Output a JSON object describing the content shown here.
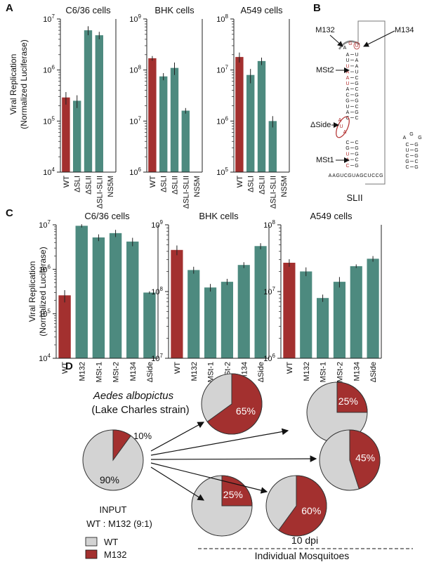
{
  "figure": {
    "colors": {
      "wt": "#a3302f",
      "mut": "#4d8a7f",
      "grey": "#d3d3d3",
      "axis": "#222222",
      "error": "#222222"
    },
    "panel_a": {
      "letter": "A",
      "ylabel_line1": "Viral Replication",
      "ylabel_line2": "(Normalized Luciferase)"
    },
    "panel_b": {
      "letter": "B",
      "structure_label": "SLII",
      "labels": {
        "m132": "M132",
        "m134": "M134",
        "mst2": "MSt2",
        "side": "ΔSide",
        "mst1": "MSt1"
      },
      "seq_left": [
        "A",
        "U",
        "U",
        "A",
        "A",
        "U",
        "A",
        "C",
        "G",
        "U",
        "A",
        "C",
        "G"
      ],
      "seq_right": [
        "U",
        "A",
        "A",
        "U",
        "C",
        "G",
        "C",
        "G",
        "G",
        "C",
        "G",
        "C"
      ],
      "loop": [
        "A",
        "G",
        "U"
      ],
      "bottom_seq": "AAGUCGUAGCUCCG",
      "side_bulge": [
        "A",
        "U",
        "A"
      ],
      "small_stem_left": [
        "C",
        "U",
        "C",
        "G",
        "C"
      ],
      "small_stem_right": [
        "G",
        "G",
        "G",
        "C",
        "G"
      ],
      "small_loop": [
        "A",
        "G",
        "G"
      ]
    },
    "panel_c": {
      "letter": "C",
      "ylabel_line1": "Viral Replication",
      "ylabel_line2": "(Normalized Luciferase)"
    },
    "panel_d": {
      "letter": "D",
      "species": "Aedes albopictus",
      "strain": "(Lake Charles strain)",
      "input_label": "INPUT",
      "input_ratio": "WT : M132 (9:1)",
      "input_wt_pct_label": "90%",
      "input_m132_pct_label": "10%",
      "legend_wt": "WT",
      "legend_m132": "M132",
      "dpi_label": "10 dpi",
      "group_label": "Individual Mosquitoes"
    }
  },
  "chart_data": [
    {
      "type": "bar",
      "panel": "A",
      "title": "C6/36 cells",
      "yscale": "log",
      "ylim": [
        10000,
        10000000
      ],
      "ytick_labels": [
        {
          "base": "10",
          "exp": "4"
        },
        {
          "base": "10",
          "exp": "5"
        },
        {
          "base": "10",
          "exp": "6"
        },
        {
          "base": "10",
          "exp": "7"
        }
      ],
      "categories": [
        "WT",
        "ΔSLI",
        "ΔSLII",
        "ΔSLI-SLII",
        "NS5M"
      ],
      "values": [
        290000,
        250000,
        6000000,
        4800000,
        null
      ],
      "errors": [
        80000,
        70000,
        1200000,
        800000,
        null
      ]
    },
    {
      "type": "bar",
      "panel": "A",
      "title": "BHK cells",
      "yscale": "log",
      "ylim": [
        1000000,
        1000000000
      ],
      "ytick_labels": [
        {
          "base": "10",
          "exp": "6"
        },
        {
          "base": "10",
          "exp": "7"
        },
        {
          "base": "10",
          "exp": "8"
        },
        {
          "base": "10",
          "exp": "9"
        }
      ],
      "categories": [
        "WT",
        "ΔSLI",
        "ΔSLII",
        "ΔSLI-SLII",
        "NS5M"
      ],
      "values": [
        170000000,
        75000000,
        110000000,
        16000000,
        null
      ],
      "errors": [
        18000000,
        12000000,
        30000000,
        2000000,
        null
      ]
    },
    {
      "type": "bar",
      "panel": "A",
      "title": "A549 cells",
      "yscale": "log",
      "ylim": [
        100000,
        100000000
      ],
      "ytick_labels": [
        {
          "base": "10",
          "exp": "5"
        },
        {
          "base": "10",
          "exp": "6"
        },
        {
          "base": "10",
          "exp": "7"
        },
        {
          "base": "10",
          "exp": "8"
        }
      ],
      "categories": [
        "WT",
        "ΔSLI",
        "ΔSLII",
        "ΔSLI-SLII",
        "NS5M"
      ],
      "values": [
        18000000,
        8000000,
        15000000,
        1000000,
        null
      ],
      "errors": [
        4000000,
        2500000,
        2500000,
        250000,
        null
      ]
    },
    {
      "type": "bar",
      "panel": "C",
      "title": "C6/36 cells",
      "yscale": "log",
      "ylim": [
        10000,
        10000000
      ],
      "ytick_labels": [
        {
          "base": "10",
          "exp": "4"
        },
        {
          "base": "10",
          "exp": "5"
        },
        {
          "base": "10",
          "exp": "6"
        },
        {
          "base": "10",
          "exp": "7"
        }
      ],
      "categories": [
        "WT",
        "M132",
        "MSt-1",
        "MSt-2",
        "M134",
        "ΔSide"
      ],
      "values": [
        260000,
        9500000,
        5200000,
        6500000,
        4200000,
        300000
      ],
      "errors": [
        80000,
        800000,
        900000,
        1200000,
        900000,
        20000
      ]
    },
    {
      "type": "bar",
      "panel": "C",
      "title": "BHK cells",
      "yscale": "log",
      "ylim": [
        10000000,
        1000000000
      ],
      "ytick_labels": [
        {
          "base": "10",
          "exp": "7"
        },
        {
          "base": "10",
          "exp": "8"
        },
        {
          "base": "10",
          "exp": "9"
        }
      ],
      "categories": [
        "WT",
        "M132",
        "MSt-1",
        "MSt-2",
        "M134",
        "ΔSide"
      ],
      "values": [
        420000000,
        210000000,
        115000000,
        140000000,
        250000000,
        480000000
      ],
      "errors": [
        70000000,
        25000000,
        15000000,
        15000000,
        25000000,
        50000000
      ]
    },
    {
      "type": "bar",
      "panel": "C",
      "title": "A549 cells",
      "yscale": "log",
      "ylim": [
        1000000,
        100000000
      ],
      "ytick_labels": [
        {
          "base": "10",
          "exp": "6"
        },
        {
          "base": "10",
          "exp": "7"
        },
        {
          "base": "10",
          "exp": "8"
        }
      ],
      "categories": [
        "WT",
        "M132",
        "MSt-1",
        "MSt-2",
        "M134",
        "ΔSide"
      ],
      "values": [
        27000000,
        20000000,
        8000000,
        14000000,
        24000000,
        31000000
      ],
      "errors": [
        3500000,
        3000000,
        1000000,
        2500000,
        1500000,
        3000000
      ]
    },
    {
      "type": "pie",
      "panel": "D",
      "title": "INPUT",
      "categories": [
        "WT",
        "M132"
      ],
      "values": [
        90,
        10
      ]
    },
    {
      "type": "pie",
      "panel": "D",
      "title": "",
      "categories": [
        "WT",
        "M132"
      ],
      "values": [
        35,
        65
      ],
      "label": "65%"
    },
    {
      "type": "pie",
      "panel": "D",
      "title": "",
      "categories": [
        "WT",
        "M132"
      ],
      "values": [
        75,
        25
      ],
      "label": "25%"
    },
    {
      "type": "pie",
      "panel": "D",
      "title": "",
      "categories": [
        "WT",
        "M132"
      ],
      "values": [
        55,
        45
      ],
      "label": "45%"
    },
    {
      "type": "pie",
      "panel": "D",
      "title": "",
      "categories": [
        "WT",
        "M132"
      ],
      "values": [
        40,
        60
      ],
      "label": "60%"
    },
    {
      "type": "pie",
      "panel": "D",
      "title": "",
      "categories": [
        "WT",
        "M132"
      ],
      "values": [
        75,
        25
      ],
      "label": "25%"
    }
  ]
}
